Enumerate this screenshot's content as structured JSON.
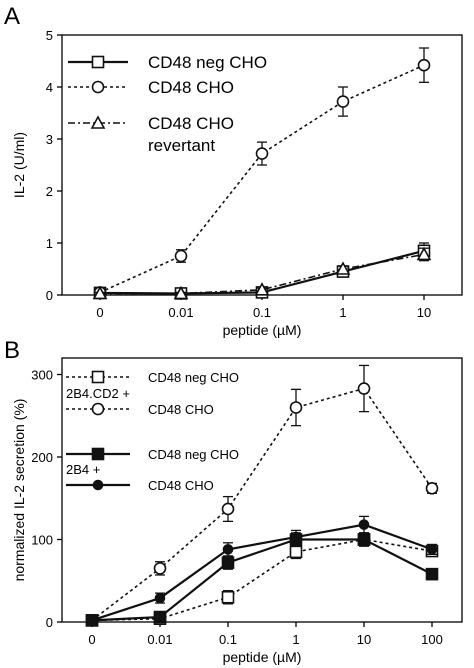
{
  "chart_data": [
    {
      "panel_label": "A",
      "type": "line",
      "x": [
        "0",
        "0.01",
        "0.1",
        "1",
        "10"
      ],
      "xlabel": "peptide (µM)",
      "ylabel": "IL-2 (U/ml)",
      "ylim": [
        0,
        5
      ],
      "yticks": [
        0,
        1,
        2,
        3,
        4,
        5
      ],
      "grid": false,
      "legend_position": "top-left",
      "series": [
        {
          "name": "CD48 neg CHO",
          "style": "solid",
          "marker": "square",
          "values": [
            0.04,
            0.03,
            0.05,
            0.45,
            0.85
          ],
          "errors": [
            0.02,
            0.02,
            0.03,
            0.08,
            0.15
          ]
        },
        {
          "name": "CD48 CHO",
          "style": "dotted",
          "marker": "circle",
          "values": [
            0.05,
            0.75,
            2.72,
            3.72,
            4.42
          ],
          "errors": [
            0.03,
            0.12,
            0.22,
            0.28,
            0.33
          ]
        },
        {
          "name": "CD48 CHO revertant",
          "legend_lines": [
            "CD48 CHO",
            "revertant"
          ],
          "style": "dashdot",
          "marker": "triangle",
          "values": [
            0.03,
            0.03,
            0.1,
            0.5,
            0.78
          ],
          "errors": [
            0.02,
            0.02,
            0.03,
            0.06,
            0.12
          ]
        }
      ]
    },
    {
      "panel_label": "B",
      "type": "line",
      "x": [
        "0",
        "0.01",
        "0.1",
        "1",
        "10",
        "100"
      ],
      "xlabel": "peptide (µM)",
      "ylabel": "normalized IL-2 secretion (%)",
      "ylim": [
        0,
        320
      ],
      "yticks": [
        0,
        100,
        200,
        300
      ],
      "grid": false,
      "legend_position": "top-left",
      "legend_groups": [
        {
          "label": "2B4.CD2 +",
          "series": [
            "CD48 neg CHO",
            "CD48 CHO"
          ]
        },
        {
          "label": "2B4 +",
          "series": [
            "CD48 neg CHO",
            "CD48 CHO"
          ]
        }
      ],
      "series": [
        {
          "name": "CD48 neg CHO",
          "group": "2B4.CD2 +",
          "style": "dotted",
          "marker": "open-square",
          "values": [
            2,
            4,
            30,
            85,
            100,
            86
          ],
          "errors": [
            2,
            2,
            8,
            8,
            8,
            6
          ]
        },
        {
          "name": "CD48 CHO",
          "group": "2B4.CD2 +",
          "style": "dotted",
          "marker": "open-circle",
          "values": [
            2,
            65,
            137,
            260,
            283,
            162
          ],
          "errors": [
            2,
            8,
            15,
            22,
            28,
            6
          ]
        },
        {
          "name": "CD48 neg CHO",
          "group": "2B4 +",
          "style": "solid",
          "marker": "filled-square",
          "values": [
            2,
            6,
            72,
            100,
            100,
            58
          ],
          "errors": [
            2,
            3,
            8,
            8,
            8,
            6
          ]
        },
        {
          "name": "CD48 CHO",
          "group": "2B4 +",
          "style": "solid",
          "marker": "filled-circle",
          "values": [
            2,
            29,
            88,
            103,
            118,
            88
          ],
          "errors": [
            2,
            6,
            8,
            8,
            10,
            6
          ]
        }
      ]
    }
  ]
}
